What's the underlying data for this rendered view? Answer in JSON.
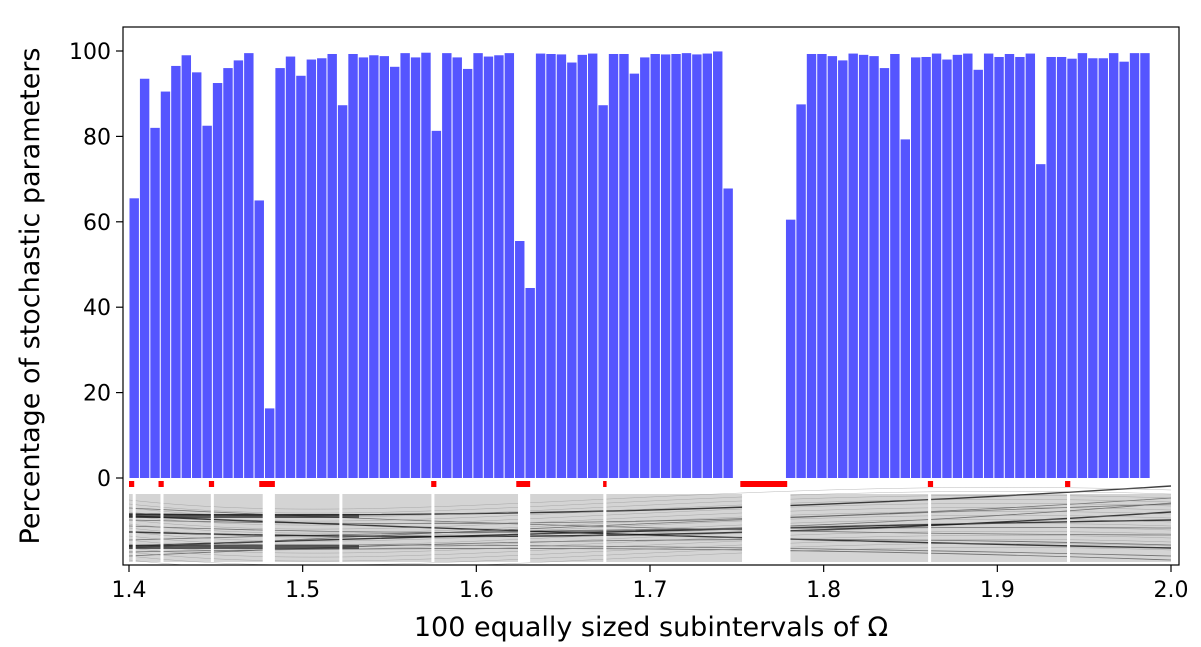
{
  "chart_data": {
    "type": "bar",
    "xlabel": "100 equally sized subintervals of Ω",
    "ylabel": "Percentage of stochastic parameters",
    "xlim": [
      1.4,
      2.0
    ],
    "ylim": [
      -20,
      105
    ],
    "x_ticks": [
      "1.4",
      "1.5",
      "1.6",
      "1.7",
      "1.8",
      "1.9",
      "2.0"
    ],
    "y_ticks": [
      "0",
      "20",
      "40",
      "60",
      "80",
      "100"
    ],
    "bar_color": "#5555ff",
    "marker_color": "#ff0000",
    "bin_width": 0.006,
    "bin_starts": [
      1.4,
      1.406,
      1.412,
      1.418,
      1.424,
      1.43,
      1.436,
      1.442,
      1.448,
      1.454,
      1.46,
      1.466,
      1.472,
      1.478,
      1.484,
      1.49,
      1.496,
      1.502,
      1.508,
      1.514,
      1.52,
      1.526,
      1.532,
      1.538,
      1.544,
      1.55,
      1.556,
      1.562,
      1.568,
      1.574,
      1.58,
      1.586,
      1.592,
      1.598,
      1.604,
      1.61,
      1.616,
      1.622,
      1.628,
      1.634,
      1.64,
      1.646,
      1.652,
      1.658,
      1.664,
      1.67,
      1.676,
      1.682,
      1.688,
      1.694,
      1.7,
      1.706,
      1.712,
      1.718,
      1.724,
      1.73,
      1.736,
      1.742,
      1.748,
      1.754,
      1.76,
      1.766,
      1.772,
      1.778,
      1.784,
      1.79,
      1.796,
      1.802,
      1.808,
      1.814,
      1.82,
      1.826,
      1.832,
      1.838,
      1.844,
      1.85,
      1.856,
      1.862,
      1.868,
      1.874,
      1.88,
      1.886,
      1.892,
      1.898,
      1.904,
      1.91,
      1.916,
      1.922,
      1.928,
      1.934,
      1.94,
      1.946,
      1.952,
      1.958,
      1.964,
      1.97,
      1.976,
      1.982,
      1.988,
      1.994
    ],
    "values": [
      65.5,
      93.5,
      82,
      90.5,
      96.5,
      99,
      95,
      82.5,
      92.5,
      96,
      97.8,
      99.5,
      65,
      16.3,
      96,
      98.7,
      94.2,
      98,
      98.3,
      99.3,
      87.3,
      99.3,
      98.5,
      99,
      98.8,
      96.3,
      99.5,
      98.5,
      99.6,
      81.3,
      99.5,
      98.5,
      95.8,
      99.5,
      98.7,
      99,
      99.5,
      55.5,
      44.5,
      99.4,
      99.3,
      99.2,
      97.3,
      99.1,
      99.4,
      87.3,
      99.3,
      99.3,
      94.7,
      98.5,
      99.3,
      99.2,
      99.3,
      99.5,
      99.2,
      99.4,
      99.9,
      67.8,
      0,
      0,
      0,
      0,
      0,
      60.5,
      87.5,
      99.3,
      99.3,
      98.8,
      97.8,
      99.4,
      99.1,
      98.8,
      96,
      99.3,
      79.3,
      98.5,
      98.6,
      99.4,
      98,
      99.1,
      99.4,
      95.6,
      99.4,
      98.6,
      99.3,
      98.6,
      99.4,
      73.5,
      98.6,
      98.6,
      98.2,
      99.5,
      98.3,
      98.3,
      99.5,
      97.5,
      99.5,
      99.5,
      0,
      0
    ],
    "marker_intervals": [
      [
        1.4,
        1.403
      ],
      [
        1.417,
        1.42
      ],
      [
        1.446,
        1.449
      ],
      [
        1.475,
        1.484
      ],
      [
        1.574,
        1.577
      ],
      [
        1.623,
        1.631
      ],
      [
        1.673,
        1.675
      ],
      [
        1.752,
        1.779
      ],
      [
        1.86,
        1.863
      ],
      [
        1.939,
        1.942
      ]
    ],
    "bifurcation_white_gaps": [
      1.403,
      1.419,
      1.448,
      1.478,
      1.481,
      1.522,
      1.575,
      1.627,
      1.674,
      1.756,
      1.762,
      1.768,
      1.774,
      1.78,
      1.861,
      1.941
    ]
  }
}
